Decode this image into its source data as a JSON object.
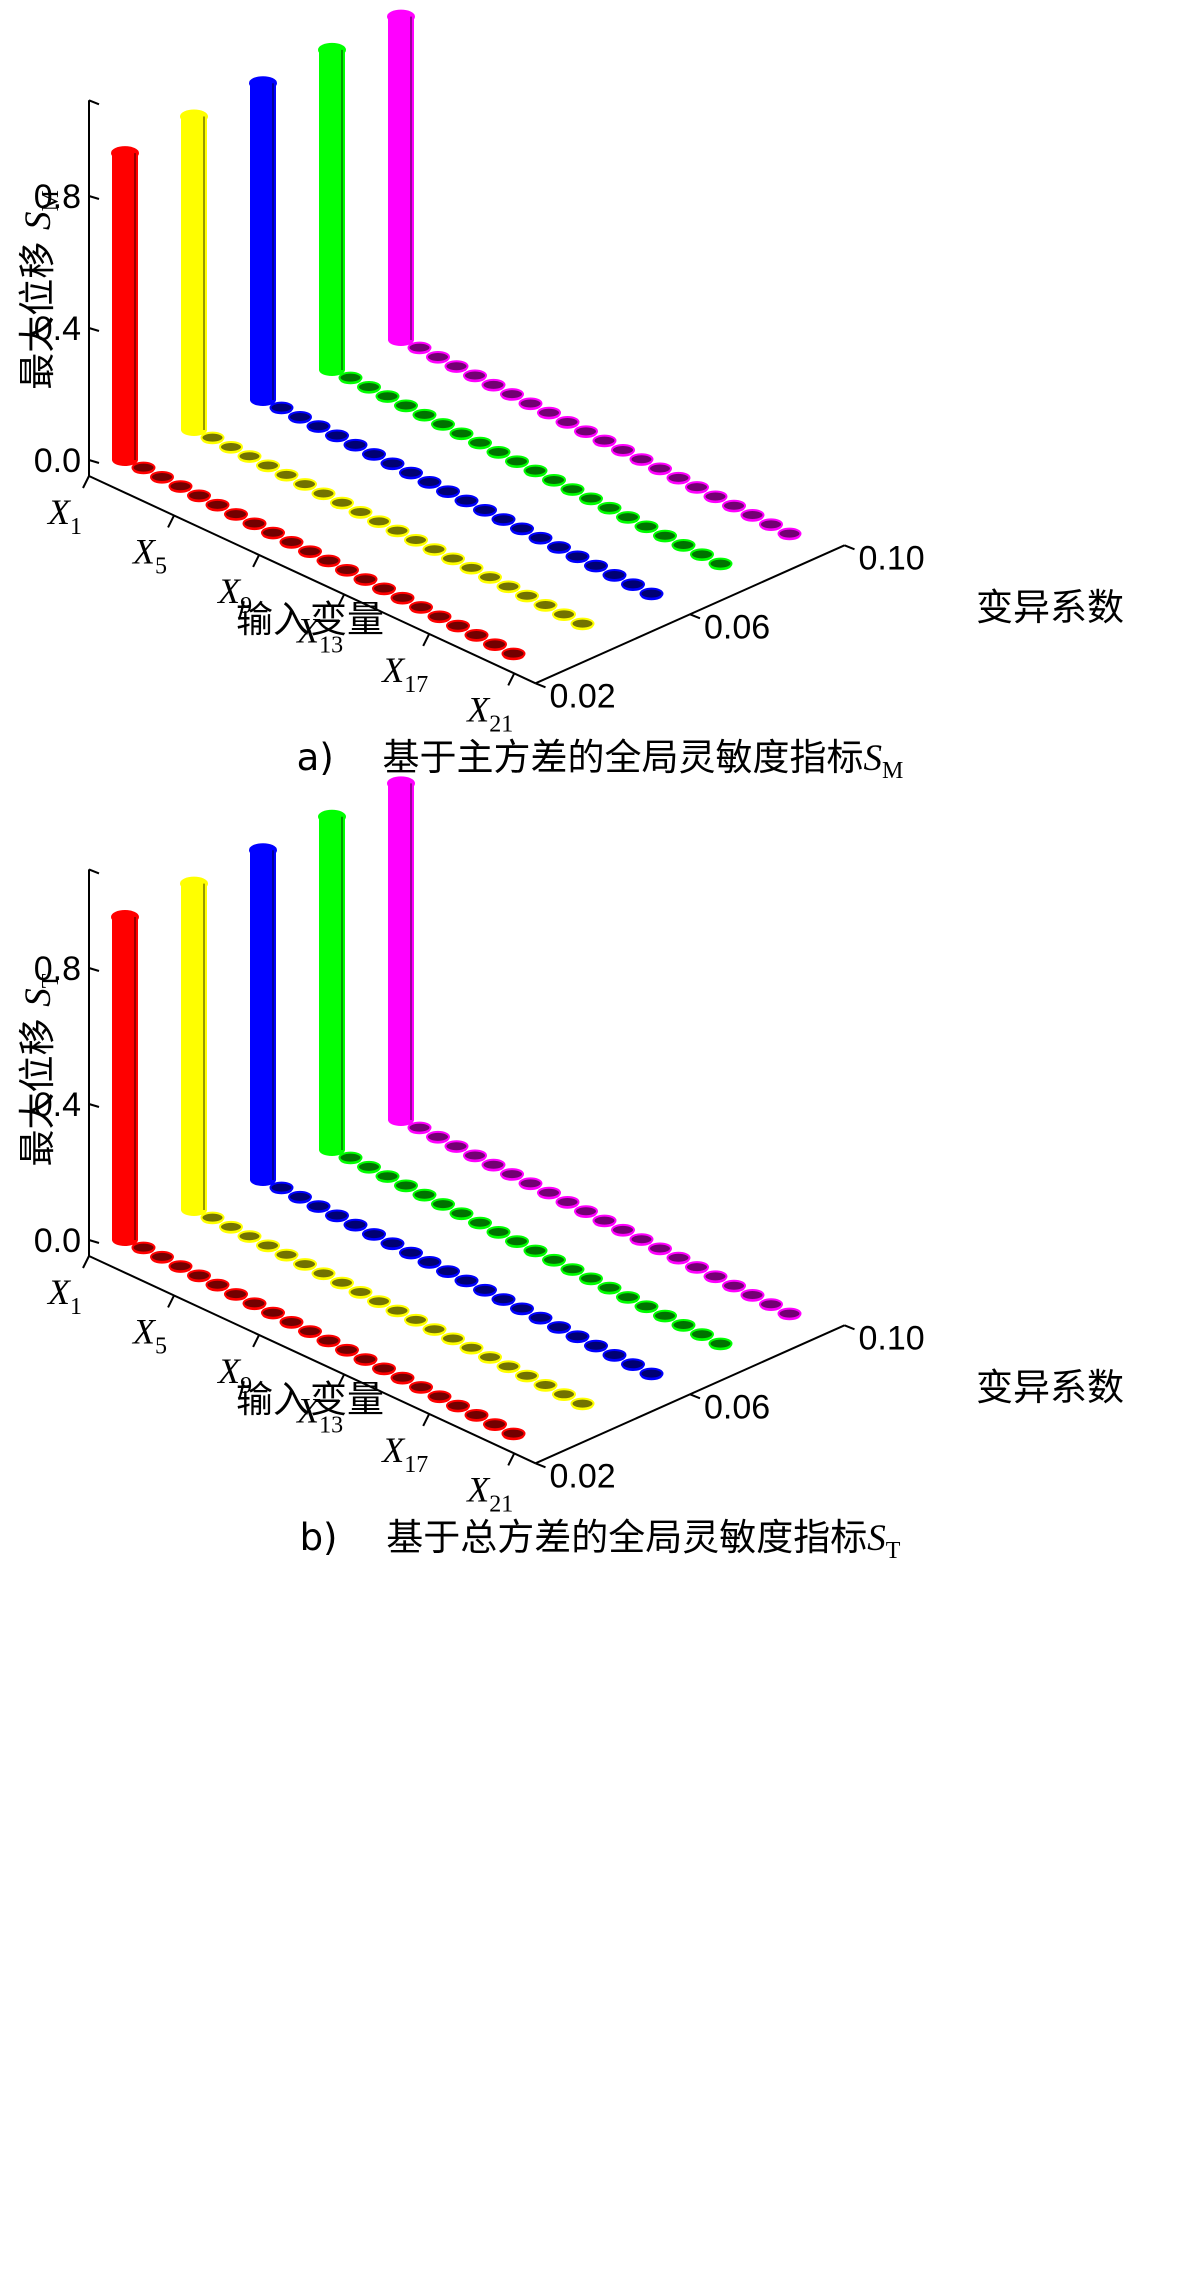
{
  "chart_data": [
    {
      "type": "bar3d",
      "panel": "a)",
      "caption": "基于主方差的全局灵敏度指标",
      "caption_symbol": "S",
      "caption_symbol_sub": "M",
      "ylabel": "最大位移",
      "ylabel_symbol": "S",
      "ylabel_symbol_sub": "M",
      "xlabel": "输入变量",
      "zlabel": "变异系数",
      "ylim": [
        0,
        1
      ],
      "yticks": [
        "0.0",
        "0.4",
        "0.8"
      ],
      "x_ticks": [
        {
          "base": "X",
          "sub": "1"
        },
        {
          "base": "X",
          "sub": "5"
        },
        {
          "base": "X",
          "sub": "9"
        },
        {
          "base": "X",
          "sub": "13"
        },
        {
          "base": "X",
          "sub": "17"
        },
        {
          "base": "X",
          "sub": "21"
        }
      ],
      "z_ticks": [
        "0.02",
        "0.06",
        "0.10"
      ],
      "series": [
        {
          "cov": 0.02,
          "color": "#ff0000",
          "values": [
            0.93,
            0.005,
            0.005,
            0.005,
            0.005,
            0.005,
            0.005,
            0.005,
            0.005,
            0.005,
            0.005,
            0.005,
            0.005,
            0.005,
            0.005,
            0.005,
            0.005,
            0.005,
            0.005,
            0.005,
            0.005,
            0.005
          ]
        },
        {
          "cov": 0.04,
          "color": "#ffff00",
          "values": [
            0.95,
            0.005,
            0.005,
            0.005,
            0.005,
            0.005,
            0.005,
            0.005,
            0.005,
            0.005,
            0.005,
            0.005,
            0.005,
            0.005,
            0.005,
            0.005,
            0.005,
            0.005,
            0.005,
            0.005,
            0.005,
            0.005
          ]
        },
        {
          "cov": 0.06,
          "color": "#0000ff",
          "values": [
            0.96,
            0.005,
            0.005,
            0.005,
            0.005,
            0.005,
            0.005,
            0.005,
            0.005,
            0.005,
            0.005,
            0.005,
            0.005,
            0.005,
            0.005,
            0.005,
            0.005,
            0.005,
            0.005,
            0.005,
            0.005,
            0.005
          ]
        },
        {
          "cov": 0.08,
          "color": "#00ff00",
          "values": [
            0.97,
            0.005,
            0.005,
            0.005,
            0.005,
            0.005,
            0.005,
            0.005,
            0.005,
            0.005,
            0.005,
            0.005,
            0.005,
            0.005,
            0.005,
            0.005,
            0.005,
            0.005,
            0.005,
            0.005,
            0.005,
            0.005
          ]
        },
        {
          "cov": 0.1,
          "color": "#ff00ff",
          "values": [
            0.98,
            0.005,
            0.005,
            0.005,
            0.005,
            0.005,
            0.005,
            0.005,
            0.005,
            0.005,
            0.005,
            0.005,
            0.005,
            0.005,
            0.005,
            0.005,
            0.005,
            0.005,
            0.005,
            0.005,
            0.005,
            0.005
          ]
        }
      ]
    },
    {
      "type": "bar3d",
      "panel": "b)",
      "caption": "基于总方差的全局灵敏度指标",
      "caption_symbol": "S",
      "caption_symbol_sub": "T",
      "ylabel": "最大位移",
      "ylabel_symbol": "S",
      "ylabel_symbol_sub": "T",
      "xlabel": "输入变量",
      "zlabel": "变异系数",
      "ylim": [
        0,
        1
      ],
      "yticks": [
        "0.0",
        "0.4",
        "0.8"
      ],
      "x_ticks": [
        {
          "base": "X",
          "sub": "1"
        },
        {
          "base": "X",
          "sub": "5"
        },
        {
          "base": "X",
          "sub": "9"
        },
        {
          "base": "X",
          "sub": "13"
        },
        {
          "base": "X",
          "sub": "17"
        },
        {
          "base": "X",
          "sub": "21"
        }
      ],
      "z_ticks": [
        "0.02",
        "0.06",
        "0.10"
      ],
      "series": [
        {
          "cov": 0.02,
          "color": "#ff0000",
          "values": [
            0.95,
            0.005,
            0.005,
            0.005,
            0.005,
            0.005,
            0.005,
            0.005,
            0.005,
            0.005,
            0.005,
            0.005,
            0.005,
            0.005,
            0.005,
            0.005,
            0.005,
            0.005,
            0.005,
            0.005,
            0.005,
            0.005
          ]
        },
        {
          "cov": 0.04,
          "color": "#ffff00",
          "values": [
            0.96,
            0.005,
            0.005,
            0.005,
            0.005,
            0.005,
            0.005,
            0.005,
            0.005,
            0.005,
            0.005,
            0.005,
            0.005,
            0.005,
            0.005,
            0.005,
            0.005,
            0.005,
            0.005,
            0.005,
            0.005,
            0.005
          ]
        },
        {
          "cov": 0.06,
          "color": "#0000ff",
          "values": [
            0.97,
            0.005,
            0.005,
            0.005,
            0.005,
            0.005,
            0.005,
            0.005,
            0.005,
            0.005,
            0.005,
            0.005,
            0.005,
            0.005,
            0.005,
            0.005,
            0.005,
            0.005,
            0.005,
            0.005,
            0.005,
            0.005
          ]
        },
        {
          "cov": 0.08,
          "color": "#00ff00",
          "values": [
            0.98,
            0.005,
            0.005,
            0.005,
            0.005,
            0.005,
            0.005,
            0.005,
            0.005,
            0.005,
            0.005,
            0.005,
            0.005,
            0.005,
            0.005,
            0.005,
            0.005,
            0.005,
            0.005,
            0.005,
            0.005,
            0.005
          ]
        },
        {
          "cov": 0.1,
          "color": "#ff00ff",
          "values": [
            0.99,
            0.005,
            0.005,
            0.005,
            0.005,
            0.005,
            0.005,
            0.005,
            0.005,
            0.005,
            0.005,
            0.005,
            0.005,
            0.005,
            0.005,
            0.005,
            0.005,
            0.005,
            0.005,
            0.005,
            0.005,
            0.005
          ]
        }
      ]
    }
  ]
}
